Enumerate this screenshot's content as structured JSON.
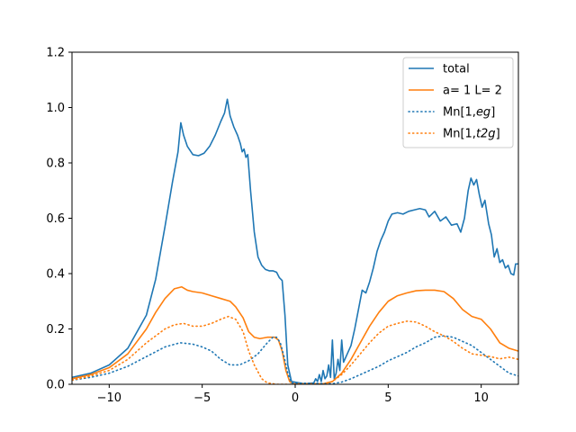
{
  "chart_data": {
    "type": "line",
    "title": "",
    "xlabel": "",
    "ylabel": "",
    "xlim": [
      -12,
      12
    ],
    "ylim": [
      0,
      1.2
    ],
    "xticks": [
      -10,
      -5,
      0,
      5,
      10
    ],
    "yticks": [
      0.0,
      0.2,
      0.4,
      0.6,
      0.8,
      1.0,
      1.2
    ],
    "xtick_labels": [
      "−10",
      "−5",
      "0",
      "5",
      "10"
    ],
    "ytick_labels": [
      "0.0",
      "0.2",
      "0.4",
      "0.6",
      "0.8",
      "1.0",
      "1.2"
    ],
    "grid": false,
    "legend_position": "upper right",
    "legend": [
      {
        "text": "total"
      },
      {
        "text": "a= 1 L= 2"
      },
      {
        "text": "Mn[1,",
        "italic": "eg",
        "suffix": "]"
      },
      {
        "text": "Mn[1,",
        "italic": "t2g",
        "suffix": "]"
      }
    ],
    "series": [
      {
        "name": "total",
        "color": "#1f77b4",
        "style": "solid",
        "points": [
          [
            -12,
            0.025
          ],
          [
            -11,
            0.04
          ],
          [
            -10,
            0.07
          ],
          [
            -9,
            0.13
          ],
          [
            -8,
            0.25
          ],
          [
            -7.5,
            0.38
          ],
          [
            -7,
            0.57
          ],
          [
            -6.6,
            0.73
          ],
          [
            -6.3,
            0.84
          ],
          [
            -6.15,
            0.945
          ],
          [
            -6.0,
            0.9
          ],
          [
            -5.8,
            0.86
          ],
          [
            -5.5,
            0.83
          ],
          [
            -5.2,
            0.826
          ],
          [
            -4.9,
            0.835
          ],
          [
            -4.6,
            0.86
          ],
          [
            -4.3,
            0.9
          ],
          [
            -4.0,
            0.95
          ],
          [
            -3.8,
            0.98
          ],
          [
            -3.65,
            1.03
          ],
          [
            -3.5,
            0.97
          ],
          [
            -3.3,
            0.93
          ],
          [
            -3.1,
            0.9
          ],
          [
            -2.95,
            0.87
          ],
          [
            -2.85,
            0.84
          ],
          [
            -2.75,
            0.85
          ],
          [
            -2.65,
            0.82
          ],
          [
            -2.55,
            0.83
          ],
          [
            -2.4,
            0.7
          ],
          [
            -2.2,
            0.55
          ],
          [
            -2.0,
            0.46
          ],
          [
            -1.8,
            0.43
          ],
          [
            -1.6,
            0.415
          ],
          [
            -1.4,
            0.41
          ],
          [
            -1.2,
            0.41
          ],
          [
            -1.0,
            0.405
          ],
          [
            -0.85,
            0.385
          ],
          [
            -0.7,
            0.375
          ],
          [
            -0.55,
            0.25
          ],
          [
            -0.4,
            0.07
          ],
          [
            -0.2,
            0.01
          ],
          [
            0.5,
            0.002
          ],
          [
            1.0,
            0.005
          ],
          [
            1.1,
            0.02
          ],
          [
            1.2,
            0.01
          ],
          [
            1.3,
            0.035
          ],
          [
            1.4,
            0.01
          ],
          [
            1.5,
            0.05
          ],
          [
            1.6,
            0.02
          ],
          [
            1.7,
            0.03
          ],
          [
            1.8,
            0.07
          ],
          [
            1.9,
            0.025
          ],
          [
            2.0,
            0.16
          ],
          [
            2.1,
            0.02
          ],
          [
            2.2,
            0.04
          ],
          [
            2.3,
            0.09
          ],
          [
            2.4,
            0.05
          ],
          [
            2.5,
            0.16
          ],
          [
            2.6,
            0.08
          ],
          [
            2.8,
            0.11
          ],
          [
            3.0,
            0.14
          ],
          [
            3.2,
            0.2
          ],
          [
            3.4,
            0.27
          ],
          [
            3.6,
            0.34
          ],
          [
            3.8,
            0.33
          ],
          [
            4.0,
            0.37
          ],
          [
            4.2,
            0.42
          ],
          [
            4.4,
            0.48
          ],
          [
            4.6,
            0.52
          ],
          [
            4.8,
            0.55
          ],
          [
            5.0,
            0.59
          ],
          [
            5.2,
            0.615
          ],
          [
            5.5,
            0.62
          ],
          [
            5.8,
            0.615
          ],
          [
            6.1,
            0.625
          ],
          [
            6.4,
            0.63
          ],
          [
            6.7,
            0.635
          ],
          [
            7.0,
            0.63
          ],
          [
            7.2,
            0.605
          ],
          [
            7.5,
            0.625
          ],
          [
            7.8,
            0.59
          ],
          [
            8.1,
            0.605
          ],
          [
            8.4,
            0.575
          ],
          [
            8.7,
            0.58
          ],
          [
            8.9,
            0.55
          ],
          [
            9.1,
            0.6
          ],
          [
            9.3,
            0.7
          ],
          [
            9.45,
            0.745
          ],
          [
            9.6,
            0.72
          ],
          [
            9.75,
            0.74
          ],
          [
            9.9,
            0.685
          ],
          [
            10.05,
            0.64
          ],
          [
            10.2,
            0.665
          ],
          [
            10.4,
            0.58
          ],
          [
            10.55,
            0.54
          ],
          [
            10.7,
            0.46
          ],
          [
            10.85,
            0.49
          ],
          [
            11.0,
            0.44
          ],
          [
            11.15,
            0.45
          ],
          [
            11.3,
            0.42
          ],
          [
            11.45,
            0.43
          ],
          [
            11.6,
            0.4
          ],
          [
            11.75,
            0.395
          ],
          [
            11.85,
            0.435
          ],
          [
            12,
            0.435
          ]
        ]
      },
      {
        "name": "a= 1 L= 2",
        "color": "#ff7f0e",
        "style": "solid",
        "points": [
          [
            -12,
            0.02
          ],
          [
            -11,
            0.035
          ],
          [
            -10,
            0.06
          ],
          [
            -9,
            0.11
          ],
          [
            -8,
            0.2
          ],
          [
            -7.5,
            0.26
          ],
          [
            -7,
            0.31
          ],
          [
            -6.5,
            0.345
          ],
          [
            -6.1,
            0.352
          ],
          [
            -5.8,
            0.34
          ],
          [
            -5.5,
            0.335
          ],
          [
            -5,
            0.33
          ],
          [
            -4.5,
            0.32
          ],
          [
            -4,
            0.31
          ],
          [
            -3.5,
            0.3
          ],
          [
            -3.2,
            0.28
          ],
          [
            -2.8,
            0.24
          ],
          [
            -2.5,
            0.19
          ],
          [
            -2.2,
            0.17
          ],
          [
            -1.9,
            0.165
          ],
          [
            -1.5,
            0.17
          ],
          [
            -1.1,
            0.17
          ],
          [
            -0.9,
            0.16
          ],
          [
            -0.7,
            0.12
          ],
          [
            -0.5,
            0.05
          ],
          [
            -0.3,
            0.01
          ],
          [
            -0.1,
            0.002
          ],
          [
            1.5,
            0.002
          ],
          [
            2.0,
            0.01
          ],
          [
            2.5,
            0.04
          ],
          [
            3.0,
            0.09
          ],
          [
            3.5,
            0.15
          ],
          [
            4.0,
            0.21
          ],
          [
            4.5,
            0.26
          ],
          [
            5.0,
            0.3
          ],
          [
            5.5,
            0.32
          ],
          [
            6.0,
            0.33
          ],
          [
            6.5,
            0.338
          ],
          [
            7.0,
            0.34
          ],
          [
            7.5,
            0.34
          ],
          [
            8.0,
            0.335
          ],
          [
            8.5,
            0.31
          ],
          [
            9.0,
            0.27
          ],
          [
            9.5,
            0.245
          ],
          [
            10.0,
            0.235
          ],
          [
            10.5,
            0.2
          ],
          [
            11.0,
            0.15
          ],
          [
            11.5,
            0.13
          ],
          [
            12,
            0.12
          ]
        ]
      },
      {
        "name": "Mn[1,eg]",
        "color": "#1f77b4",
        "style": "dotted",
        "points": [
          [
            -12,
            0.015
          ],
          [
            -11,
            0.025
          ],
          [
            -10,
            0.04
          ],
          [
            -9,
            0.065
          ],
          [
            -8,
            0.1
          ],
          [
            -7,
            0.135
          ],
          [
            -6.2,
            0.15
          ],
          [
            -5.5,
            0.145
          ],
          [
            -5,
            0.135
          ],
          [
            -4.5,
            0.12
          ],
          [
            -4,
            0.09
          ],
          [
            -3.5,
            0.07
          ],
          [
            -3,
            0.07
          ],
          [
            -2.5,
            0.085
          ],
          [
            -2,
            0.11
          ],
          [
            -1.5,
            0.15
          ],
          [
            -1.2,
            0.17
          ],
          [
            -1.0,
            0.17
          ],
          [
            -0.8,
            0.15
          ],
          [
            -0.6,
            0.1
          ],
          [
            -0.4,
            0.04
          ],
          [
            -0.2,
            0.005
          ],
          [
            2.0,
            0.002
          ],
          [
            2.5,
            0.008
          ],
          [
            3.0,
            0.02
          ],
          [
            3.5,
            0.035
          ],
          [
            4.0,
            0.05
          ],
          [
            4.5,
            0.065
          ],
          [
            5.0,
            0.085
          ],
          [
            5.5,
            0.1
          ],
          [
            6.0,
            0.115
          ],
          [
            6.5,
            0.135
          ],
          [
            7.0,
            0.15
          ],
          [
            7.5,
            0.17
          ],
          [
            8.0,
            0.175
          ],
          [
            8.5,
            0.17
          ],
          [
            9.0,
            0.155
          ],
          [
            9.5,
            0.14
          ],
          [
            10.0,
            0.115
          ],
          [
            10.5,
            0.09
          ],
          [
            11.0,
            0.065
          ],
          [
            11.5,
            0.04
          ],
          [
            12,
            0.03
          ]
        ]
      },
      {
        "name": "Mn[1,t2g]",
        "color": "#ff7f0e",
        "style": "dotted",
        "points": [
          [
            -12,
            0.015
          ],
          [
            -11,
            0.03
          ],
          [
            -10,
            0.05
          ],
          [
            -9,
            0.09
          ],
          [
            -8,
            0.15
          ],
          [
            -7,
            0.2
          ],
          [
            -6.5,
            0.215
          ],
          [
            -6.0,
            0.22
          ],
          [
            -5.5,
            0.21
          ],
          [
            -5,
            0.21
          ],
          [
            -4.5,
            0.22
          ],
          [
            -4.0,
            0.235
          ],
          [
            -3.6,
            0.245
          ],
          [
            -3.2,
            0.235
          ],
          [
            -2.8,
            0.19
          ],
          [
            -2.5,
            0.12
          ],
          [
            -2.2,
            0.07
          ],
          [
            -1.8,
            0.02
          ],
          [
            -1.5,
            0.005
          ],
          [
            -1.0,
            0.0
          ],
          [
            1.5,
            0.0
          ],
          [
            2.0,
            0.01
          ],
          [
            2.5,
            0.035
          ],
          [
            3.0,
            0.07
          ],
          [
            3.5,
            0.11
          ],
          [
            4.0,
            0.15
          ],
          [
            4.5,
            0.185
          ],
          [
            5.0,
            0.21
          ],
          [
            5.5,
            0.22
          ],
          [
            6.0,
            0.228
          ],
          [
            6.5,
            0.225
          ],
          [
            7.0,
            0.21
          ],
          [
            7.5,
            0.19
          ],
          [
            8.0,
            0.175
          ],
          [
            8.5,
            0.155
          ],
          [
            9.0,
            0.13
          ],
          [
            9.5,
            0.11
          ],
          [
            10.0,
            0.105
          ],
          [
            10.5,
            0.1
          ],
          [
            11.0,
            0.092
          ],
          [
            11.5,
            0.098
          ],
          [
            12,
            0.09
          ]
        ]
      }
    ]
  }
}
